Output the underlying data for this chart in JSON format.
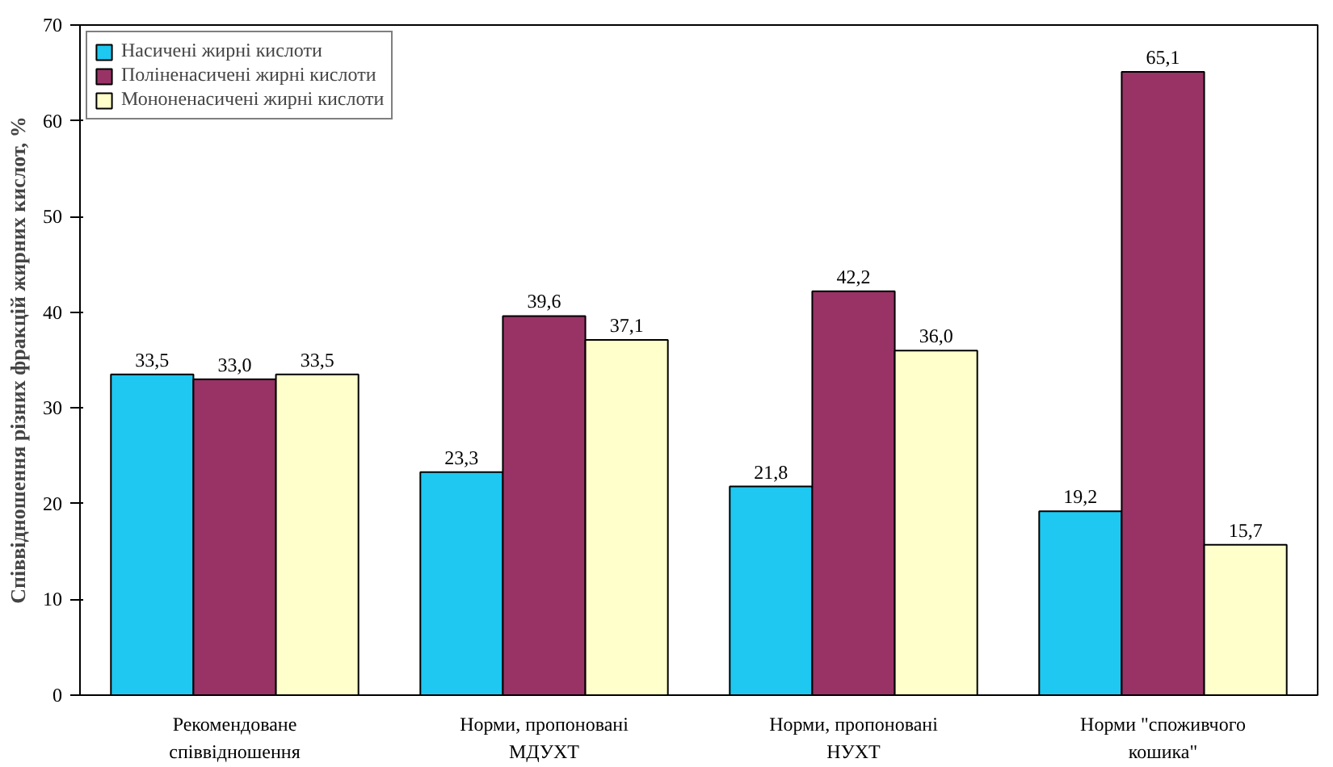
{
  "chart_data": {
    "type": "bar",
    "ylabel": "Співвідношення різних фракцій жирних кислот, %",
    "categories": [
      "Рекомендоване\nспіввідношення",
      "Норми, пропоновані\nМДУХТ",
      "Норми, пропоновані\nНУХТ",
      "Норми \"споживчого\nкошика\""
    ],
    "series": [
      {
        "name": "Насичені жирні кислоти",
        "color": "#1ec8f0",
        "values": [
          33.5,
          23.3,
          21.8,
          19.2
        ],
        "value_labels": [
          "33,5",
          "23,3",
          "21,8",
          "19,2"
        ]
      },
      {
        "name": "Поліненасичені жирні кислоти",
        "color": "#993366",
        "values": [
          33.0,
          39.6,
          42.2,
          65.1
        ],
        "value_labels": [
          "33,0",
          "39,6",
          "42,2",
          "65,1"
        ]
      },
      {
        "name": "Мононенасичені жирні кислоти",
        "color": "#ffffcc",
        "values": [
          33.5,
          37.1,
          36.0,
          15.7
        ],
        "value_labels": [
          "33,5",
          "37,1",
          "36,0",
          "15,7"
        ]
      }
    ],
    "ylim": [
      0,
      70
    ],
    "yticks": [
      0,
      10,
      20,
      30,
      40,
      50,
      60,
      70
    ],
    "grid": false,
    "legend": "top left"
  }
}
